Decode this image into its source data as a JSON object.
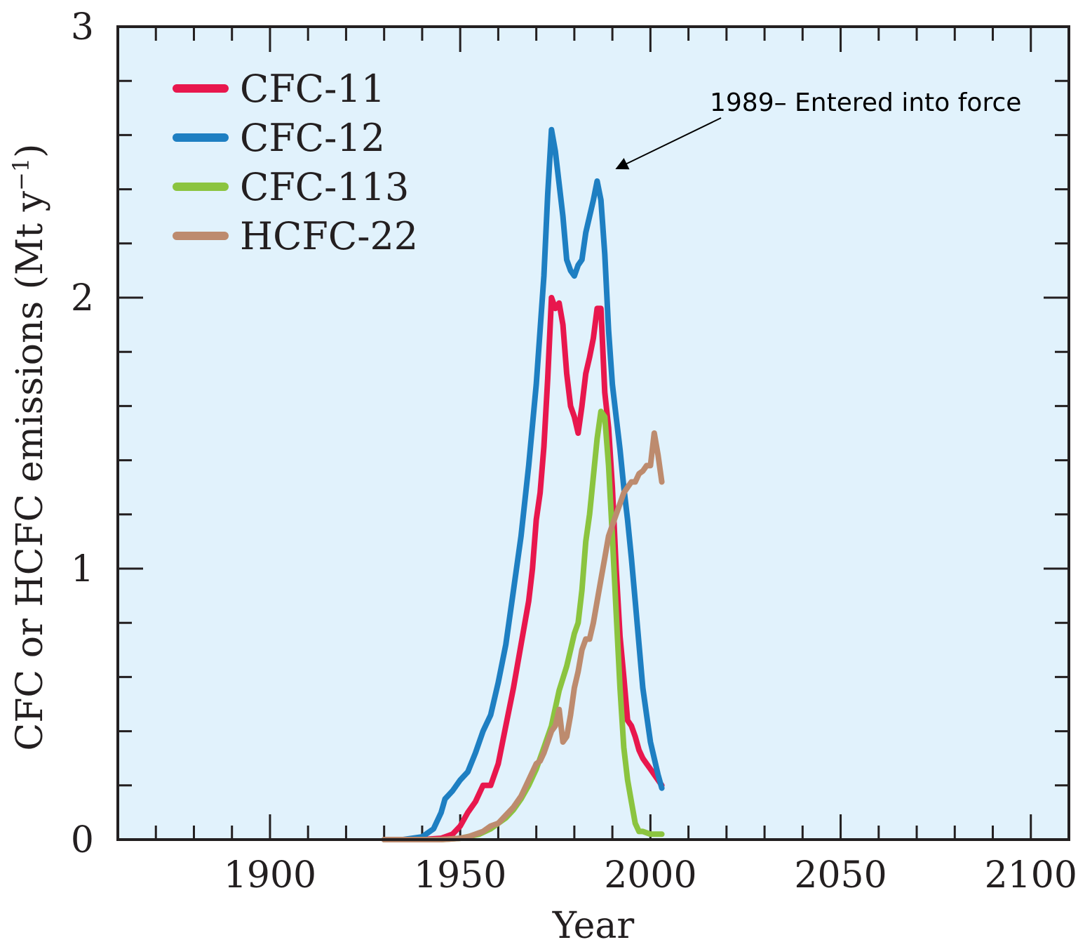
{
  "chart_data": {
    "type": "line",
    "title": "",
    "xlabel": "Year",
    "ylabel": "CFC or HCFC emissions (Mt y",
    "ylabel_sup": "−1",
    "ylabel_close": ")",
    "xlim": [
      1860,
      2110
    ],
    "ylim": [
      0,
      3
    ],
    "x_ticks": [
      1900,
      1950,
      2000,
      2050,
      2100
    ],
    "x_tick_labels": [
      "1900",
      "1950",
      "2000",
      "2050",
      "2100"
    ],
    "y_ticks": [
      0,
      1,
      2,
      3
    ],
    "y_tick_labels": [
      "0",
      "1",
      "2",
      "3"
    ],
    "x_minor_step": 10,
    "y_minor_step": 0.2,
    "grid": false,
    "background": "#e1f2fc",
    "legend_position": "top-left",
    "series": [
      {
        "name": "CFC-11",
        "color": "#e8174d",
        "points": [
          [
            1930,
            0
          ],
          [
            1935,
            0
          ],
          [
            1940,
            0
          ],
          [
            1945,
            0.005
          ],
          [
            1948,
            0.02
          ],
          [
            1950,
            0.05
          ],
          [
            1952,
            0.1
          ],
          [
            1954,
            0.14
          ],
          [
            1956,
            0.2
          ],
          [
            1958,
            0.2
          ],
          [
            1960,
            0.28
          ],
          [
            1962,
            0.42
          ],
          [
            1964,
            0.56
          ],
          [
            1966,
            0.72
          ],
          [
            1968,
            0.88
          ],
          [
            1969,
            1.0
          ],
          [
            1970,
            1.18
          ],
          [
            1971,
            1.28
          ],
          [
            1972,
            1.45
          ],
          [
            1973,
            1.7
          ],
          [
            1974,
            2.0
          ],
          [
            1975,
            1.96
          ],
          [
            1976,
            1.98
          ],
          [
            1977,
            1.9
          ],
          [
            1978,
            1.72
          ],
          [
            1979,
            1.6
          ],
          [
            1980,
            1.56
          ],
          [
            1981,
            1.5
          ],
          [
            1982,
            1.6
          ],
          [
            1983,
            1.72
          ],
          [
            1984,
            1.78
          ],
          [
            1985,
            1.85
          ],
          [
            1986,
            1.96
          ],
          [
            1987,
            1.96
          ],
          [
            1988,
            1.65
          ],
          [
            1989,
            1.52
          ],
          [
            1990,
            1.3
          ],
          [
            1991,
            1.0
          ],
          [
            1992,
            0.75
          ],
          [
            1993,
            0.6
          ],
          [
            1994,
            0.44
          ],
          [
            1995,
            0.42
          ],
          [
            1996,
            0.38
          ],
          [
            1997,
            0.33
          ],
          [
            1998,
            0.3
          ],
          [
            1999,
            0.28
          ],
          [
            2000,
            0.26
          ],
          [
            2001,
            0.24
          ],
          [
            2002,
            0.22
          ],
          [
            2003,
            0.2
          ]
        ]
      },
      {
        "name": "CFC-12",
        "color": "#1e7fc2",
        "points": [
          [
            1930,
            0
          ],
          [
            1935,
            0
          ],
          [
            1940,
            0.01
          ],
          [
            1943,
            0.04
          ],
          [
            1945,
            0.1
          ],
          [
            1946,
            0.15
          ],
          [
            1948,
            0.18
          ],
          [
            1950,
            0.22
          ],
          [
            1952,
            0.25
          ],
          [
            1954,
            0.32
          ],
          [
            1956,
            0.4
          ],
          [
            1958,
            0.46
          ],
          [
            1960,
            0.58
          ],
          [
            1962,
            0.72
          ],
          [
            1964,
            0.92
          ],
          [
            1966,
            1.12
          ],
          [
            1968,
            1.38
          ],
          [
            1970,
            1.68
          ],
          [
            1972,
            2.08
          ],
          [
            1973,
            2.38
          ],
          [
            1974,
            2.62
          ],
          [
            1975,
            2.54
          ],
          [
            1976,
            2.42
          ],
          [
            1977,
            2.3
          ],
          [
            1978,
            2.14
          ],
          [
            1979,
            2.1
          ],
          [
            1980,
            2.08
          ],
          [
            1981,
            2.12
          ],
          [
            1982,
            2.14
          ],
          [
            1983,
            2.24
          ],
          [
            1984,
            2.3
          ],
          [
            1985,
            2.36
          ],
          [
            1986,
            2.43
          ],
          [
            1987,
            2.36
          ],
          [
            1988,
            2.16
          ],
          [
            1989,
            1.88
          ],
          [
            1990,
            1.68
          ],
          [
            1991,
            1.56
          ],
          [
            1992,
            1.44
          ],
          [
            1993,
            1.3
          ],
          [
            1994,
            1.18
          ],
          [
            1995,
            1.04
          ],
          [
            1996,
            0.88
          ],
          [
            1997,
            0.72
          ],
          [
            1998,
            0.56
          ],
          [
            1999,
            0.46
          ],
          [
            2000,
            0.36
          ],
          [
            2001,
            0.3
          ],
          [
            2002,
            0.24
          ],
          [
            2003,
            0.19
          ]
        ]
      },
      {
        "name": "CFC-113",
        "color": "#8bc43f",
        "points": [
          [
            1930,
            0
          ],
          [
            1935,
            0
          ],
          [
            1940,
            0
          ],
          [
            1945,
            0
          ],
          [
            1950,
            0.005
          ],
          [
            1955,
            0.02
          ],
          [
            1958,
            0.04
          ],
          [
            1960,
            0.06
          ],
          [
            1962,
            0.08
          ],
          [
            1964,
            0.11
          ],
          [
            1966,
            0.15
          ],
          [
            1968,
            0.2
          ],
          [
            1970,
            0.26
          ],
          [
            1972,
            0.34
          ],
          [
            1974,
            0.42
          ],
          [
            1976,
            0.55
          ],
          [
            1978,
            0.64
          ],
          [
            1979,
            0.7
          ],
          [
            1980,
            0.76
          ],
          [
            1981,
            0.8
          ],
          [
            1982,
            0.92
          ],
          [
            1983,
            1.1
          ],
          [
            1984,
            1.2
          ],
          [
            1985,
            1.34
          ],
          [
            1986,
            1.48
          ],
          [
            1987,
            1.58
          ],
          [
            1988,
            1.56
          ],
          [
            1989,
            1.38
          ],
          [
            1990,
            1.12
          ],
          [
            1991,
            0.84
          ],
          [
            1992,
            0.56
          ],
          [
            1993,
            0.34
          ],
          [
            1994,
            0.22
          ],
          [
            1995,
            0.14
          ],
          [
            1996,
            0.06
          ],
          [
            1997,
            0.03
          ],
          [
            1998,
            0.03
          ],
          [
            2000,
            0.02
          ],
          [
            2003,
            0.02
          ]
        ]
      },
      {
        "name": "HCFC-22",
        "color": "#bd8b6e",
        "points": [
          [
            1930,
            0
          ],
          [
            1935,
            0
          ],
          [
            1940,
            0
          ],
          [
            1945,
            0
          ],
          [
            1950,
            0.005
          ],
          [
            1952,
            0.01
          ],
          [
            1954,
            0.02
          ],
          [
            1956,
            0.03
          ],
          [
            1958,
            0.05
          ],
          [
            1960,
            0.06
          ],
          [
            1962,
            0.09
          ],
          [
            1964,
            0.12
          ],
          [
            1966,
            0.16
          ],
          [
            1968,
            0.22
          ],
          [
            1970,
            0.28
          ],
          [
            1971,
            0.29
          ],
          [
            1972,
            0.32
          ],
          [
            1973,
            0.36
          ],
          [
            1974,
            0.4
          ],
          [
            1975,
            0.42
          ],
          [
            1976,
            0.48
          ],
          [
            1977,
            0.36
          ],
          [
            1978,
            0.38
          ],
          [
            1979,
            0.46
          ],
          [
            1980,
            0.56
          ],
          [
            1981,
            0.62
          ],
          [
            1982,
            0.7
          ],
          [
            1983,
            0.74
          ],
          [
            1984,
            0.74
          ],
          [
            1985,
            0.8
          ],
          [
            1986,
            0.88
          ],
          [
            1987,
            0.96
          ],
          [
            1988,
            1.04
          ],
          [
            1989,
            1.12
          ],
          [
            1990,
            1.16
          ],
          [
            1991,
            1.2
          ],
          [
            1992,
            1.24
          ],
          [
            1993,
            1.28
          ],
          [
            1994,
            1.3
          ],
          [
            1995,
            1.32
          ],
          [
            1996,
            1.32
          ],
          [
            1997,
            1.35
          ],
          [
            1998,
            1.36
          ],
          [
            1999,
            1.38
          ],
          [
            2000,
            1.38
          ],
          [
            2001,
            1.5
          ],
          [
            2002,
            1.42
          ],
          [
            2003,
            1.32
          ]
        ]
      }
    ],
    "annotation": {
      "text": "1989– Entered into force",
      "target": [
        1988.5,
        2.44
      ]
    }
  }
}
